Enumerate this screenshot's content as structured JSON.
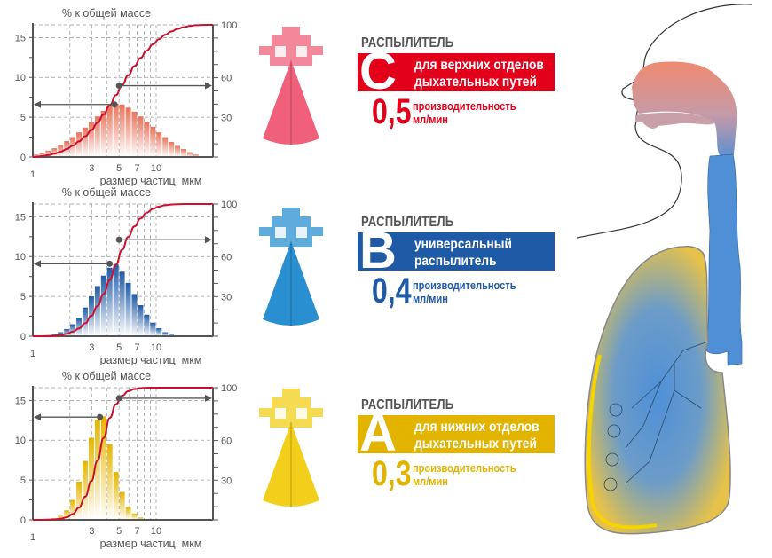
{
  "chart_data": [
    {
      "type": "bar",
      "title": "% к общей массе",
      "xlabel": "размер частиц, мкм",
      "x_scale": "log",
      "x_range": [
        1,
        25
      ],
      "x_ticks": [
        "1",
        "3",
        "5",
        "7",
        "10"
      ],
      "y_left_ticks": [
        "0",
        "5",
        "10",
        "15"
      ],
      "y_left_range": [
        0,
        16.6
      ],
      "y_right_ticks": [
        "30",
        "60",
        "100"
      ],
      "y_right_range": [
        0,
        100
      ],
      "grid": true,
      "bar_color": "#e8735a",
      "curve_color": "#c8102e",
      "series": [
        {
          "values": [
            0.3,
            0.5,
            0.8,
            1.1,
            1.5,
            2.0,
            2.5,
            3.1,
            3.7,
            4.4,
            5.1,
            5.8,
            6.4,
            6.7,
            6.6,
            6.2,
            5.7,
            5.1,
            4.4,
            3.8,
            3.1,
            2.5,
            1.9,
            1.4,
            1.0,
            0.6,
            0.3,
            0.1
          ]
        }
      ],
      "markers": {
        "left": {
          "x": 4.6,
          "y": 6.6
        },
        "right": {
          "x": 5,
          "cumulative": 54
        }
      }
    },
    {
      "type": "bar",
      "title": "% к общей массе",
      "xlabel": "размер частиц, мкм",
      "x_scale": "log",
      "x_range": [
        1,
        25
      ],
      "x_ticks": [
        "1",
        "3",
        "5",
        "7",
        "10"
      ],
      "y_left_ticks": [
        "0",
        "5",
        "10",
        "15"
      ],
      "y_left_range": [
        0,
        16.6
      ],
      "y_right_ticks": [
        "30",
        "60",
        "100"
      ],
      "y_right_range": [
        0,
        100
      ],
      "grid": true,
      "bar_color": "#1f5aa6",
      "curve_color": "#d0102e",
      "series": [
        {
          "values": [
            0,
            0.05,
            0.1,
            0.3,
            0.5,
            0.9,
            1.5,
            2.3,
            3.6,
            5.0,
            6.3,
            7.6,
            8.6,
            9.0,
            8.1,
            6.7,
            5.3,
            3.9,
            2.7,
            1.7,
            1.0,
            0.5,
            0.3,
            0.1,
            0.05,
            0,
            0,
            0
          ]
        }
      ],
      "markers": {
        "left": {
          "x": 4.2,
          "y": 9.1
        },
        "right": {
          "x": 5,
          "cumulative": 73
        }
      }
    },
    {
      "type": "bar",
      "title": "% к общей массе",
      "xlabel": "размер частиц, мкм",
      "x_scale": "log",
      "x_range": [
        1,
        25
      ],
      "x_ticks": [
        "1",
        "3",
        "5",
        "7",
        "10"
      ],
      "y_left_ticks": [
        "0",
        "5",
        "10",
        "15"
      ],
      "y_left_range": [
        0,
        16.6
      ],
      "y_right_ticks": [
        "30",
        "60",
        "100"
      ],
      "y_right_range": [
        0,
        100
      ],
      "grid": true,
      "bar_color": "#e5b400",
      "curve_color": "#c8102e",
      "series": [
        {
          "values": [
            0,
            0.05,
            0.1,
            0.2,
            0.5,
            1.2,
            2.5,
            4.8,
            7.4,
            10.3,
            12.6,
            13.0,
            9.5,
            6.0,
            3.5,
            1.6,
            0.8,
            0.3,
            0.1,
            0,
            0,
            0,
            0,
            0,
            0,
            0,
            0,
            0
          ]
        }
      ],
      "markers": {
        "left": {
          "x": 3.5,
          "y": 12.9
        },
        "right": {
          "x": 5,
          "cumulative": 92
        }
      }
    }
  ],
  "nebulizers": [
    {
      "kicker": "РАСПЫЛИТЕЛЬ",
      "letter": "C",
      "line1": "для верхних отделов",
      "line2": "дыхательных путей",
      "rate": "0,5",
      "rate_label": "производительность",
      "rate_unit": "мл/мин",
      "color": "#e3001b",
      "nozzle_color": "#f0607a"
    },
    {
      "kicker": "РАСПЫЛИТЕЛЬ",
      "letter": "B",
      "line1": "универсальный",
      "line2": "распылитель",
      "rate": "0,4",
      "rate_label": "производительность",
      "rate_unit": "мл/мин",
      "color": "#1f5aa6",
      "nozzle_color": "#2a8fd0"
    },
    {
      "kicker": "РАСПЫЛИТЕЛЬ",
      "letter": "A",
      "line1": "для нижних отделов",
      "line2": "дыхательных путей",
      "rate": "0,3",
      "rate_label": "производительность",
      "rate_unit": "мл/мин",
      "color": "#e2b400",
      "nozzle_color": "#f2cf1a"
    }
  ]
}
